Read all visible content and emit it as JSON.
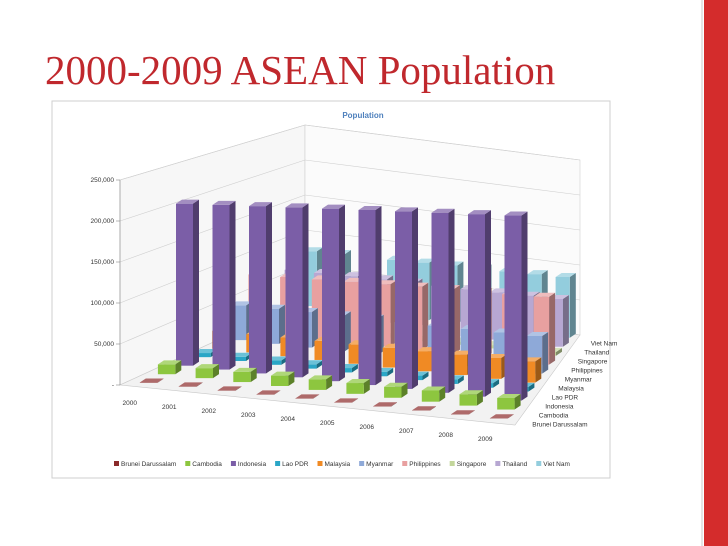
{
  "header": {
    "title": "2000-2009 ASEAN Population"
  },
  "chart_data": {
    "type": "bar3d",
    "title": "Population",
    "categories": [
      "2000",
      "2001",
      "2002",
      "2003",
      "2004",
      "2005",
      "2006",
      "2007",
      "2008",
      "2009"
    ],
    "series": [
      {
        "name": "Brunei Darussalam",
        "color": "#8b2a2a",
        "values": [
          333,
          340,
          347,
          354,
          361,
          368,
          375,
          382,
          389,
          396
        ]
      },
      {
        "name": "Cambodia",
        "color": "#8dc63f",
        "values": [
          12200,
          12450,
          12700,
          12950,
          13200,
          13450,
          13700,
          13950,
          14200,
          14450
        ]
      },
      {
        "name": "Indonesia",
        "color": "#7b5ea7",
        "values": [
          205100,
          208400,
          211800,
          215100,
          218400,
          221600,
          224800,
          228000,
          231100,
          234200
        ]
      },
      {
        "name": "Lao PDR",
        "color": "#2aa6c6",
        "values": [
          5280,
          5380,
          5470,
          5570,
          5660,
          5750,
          5840,
          5930,
          6030,
          6120
        ]
      },
      {
        "name": "Malaysia",
        "color": "#f08a24",
        "values": [
          23270,
          23800,
          24330,
          24860,
          25360,
          25840,
          26300,
          26760,
          27200,
          27730
        ]
      },
      {
        "name": "Myanmar",
        "color": "#8ea9d8",
        "values": [
          46100,
          46600,
          47100,
          47600,
          48100,
          48500,
          48900,
          49300,
          49700,
          50000
        ]
      },
      {
        "name": "Philippines",
        "color": "#e8a0a0",
        "values": [
          76900,
          78500,
          80200,
          81900,
          83600,
          85300,
          87000,
          88500,
          90000,
          91600
        ]
      },
      {
        "name": "Singapore",
        "color": "#c3d69b",
        "values": [
          4030,
          4140,
          4180,
          4110,
          4170,
          4270,
          4400,
          4590,
          4840,
          4990
        ]
      },
      {
        "name": "Thailand",
        "color": "#b7a7d2",
        "values": [
          62240,
          62900,
          63460,
          63960,
          64400,
          64840,
          65260,
          65680,
          66080,
          66470
        ]
      },
      {
        "name": "Viet Nam",
        "color": "#93cddd",
        "values": [
          77630,
          78620,
          79540,
          80470,
          81440,
          82390,
          83310,
          84220,
          85120,
          86030
        ]
      }
    ],
    "ylim": [
      0,
      250000
    ],
    "yticks": [
      {
        "value": 0,
        "label": "-"
      },
      {
        "value": 50000,
        "label": "50,000"
      },
      {
        "value": 100000,
        "label": "100,000"
      },
      {
        "value": 150000,
        "label": "150,000"
      },
      {
        "value": 200000,
        "label": "200,000"
      },
      {
        "value": 250000,
        "label": "250,000"
      }
    ],
    "grid": true,
    "legend": "bottom"
  }
}
